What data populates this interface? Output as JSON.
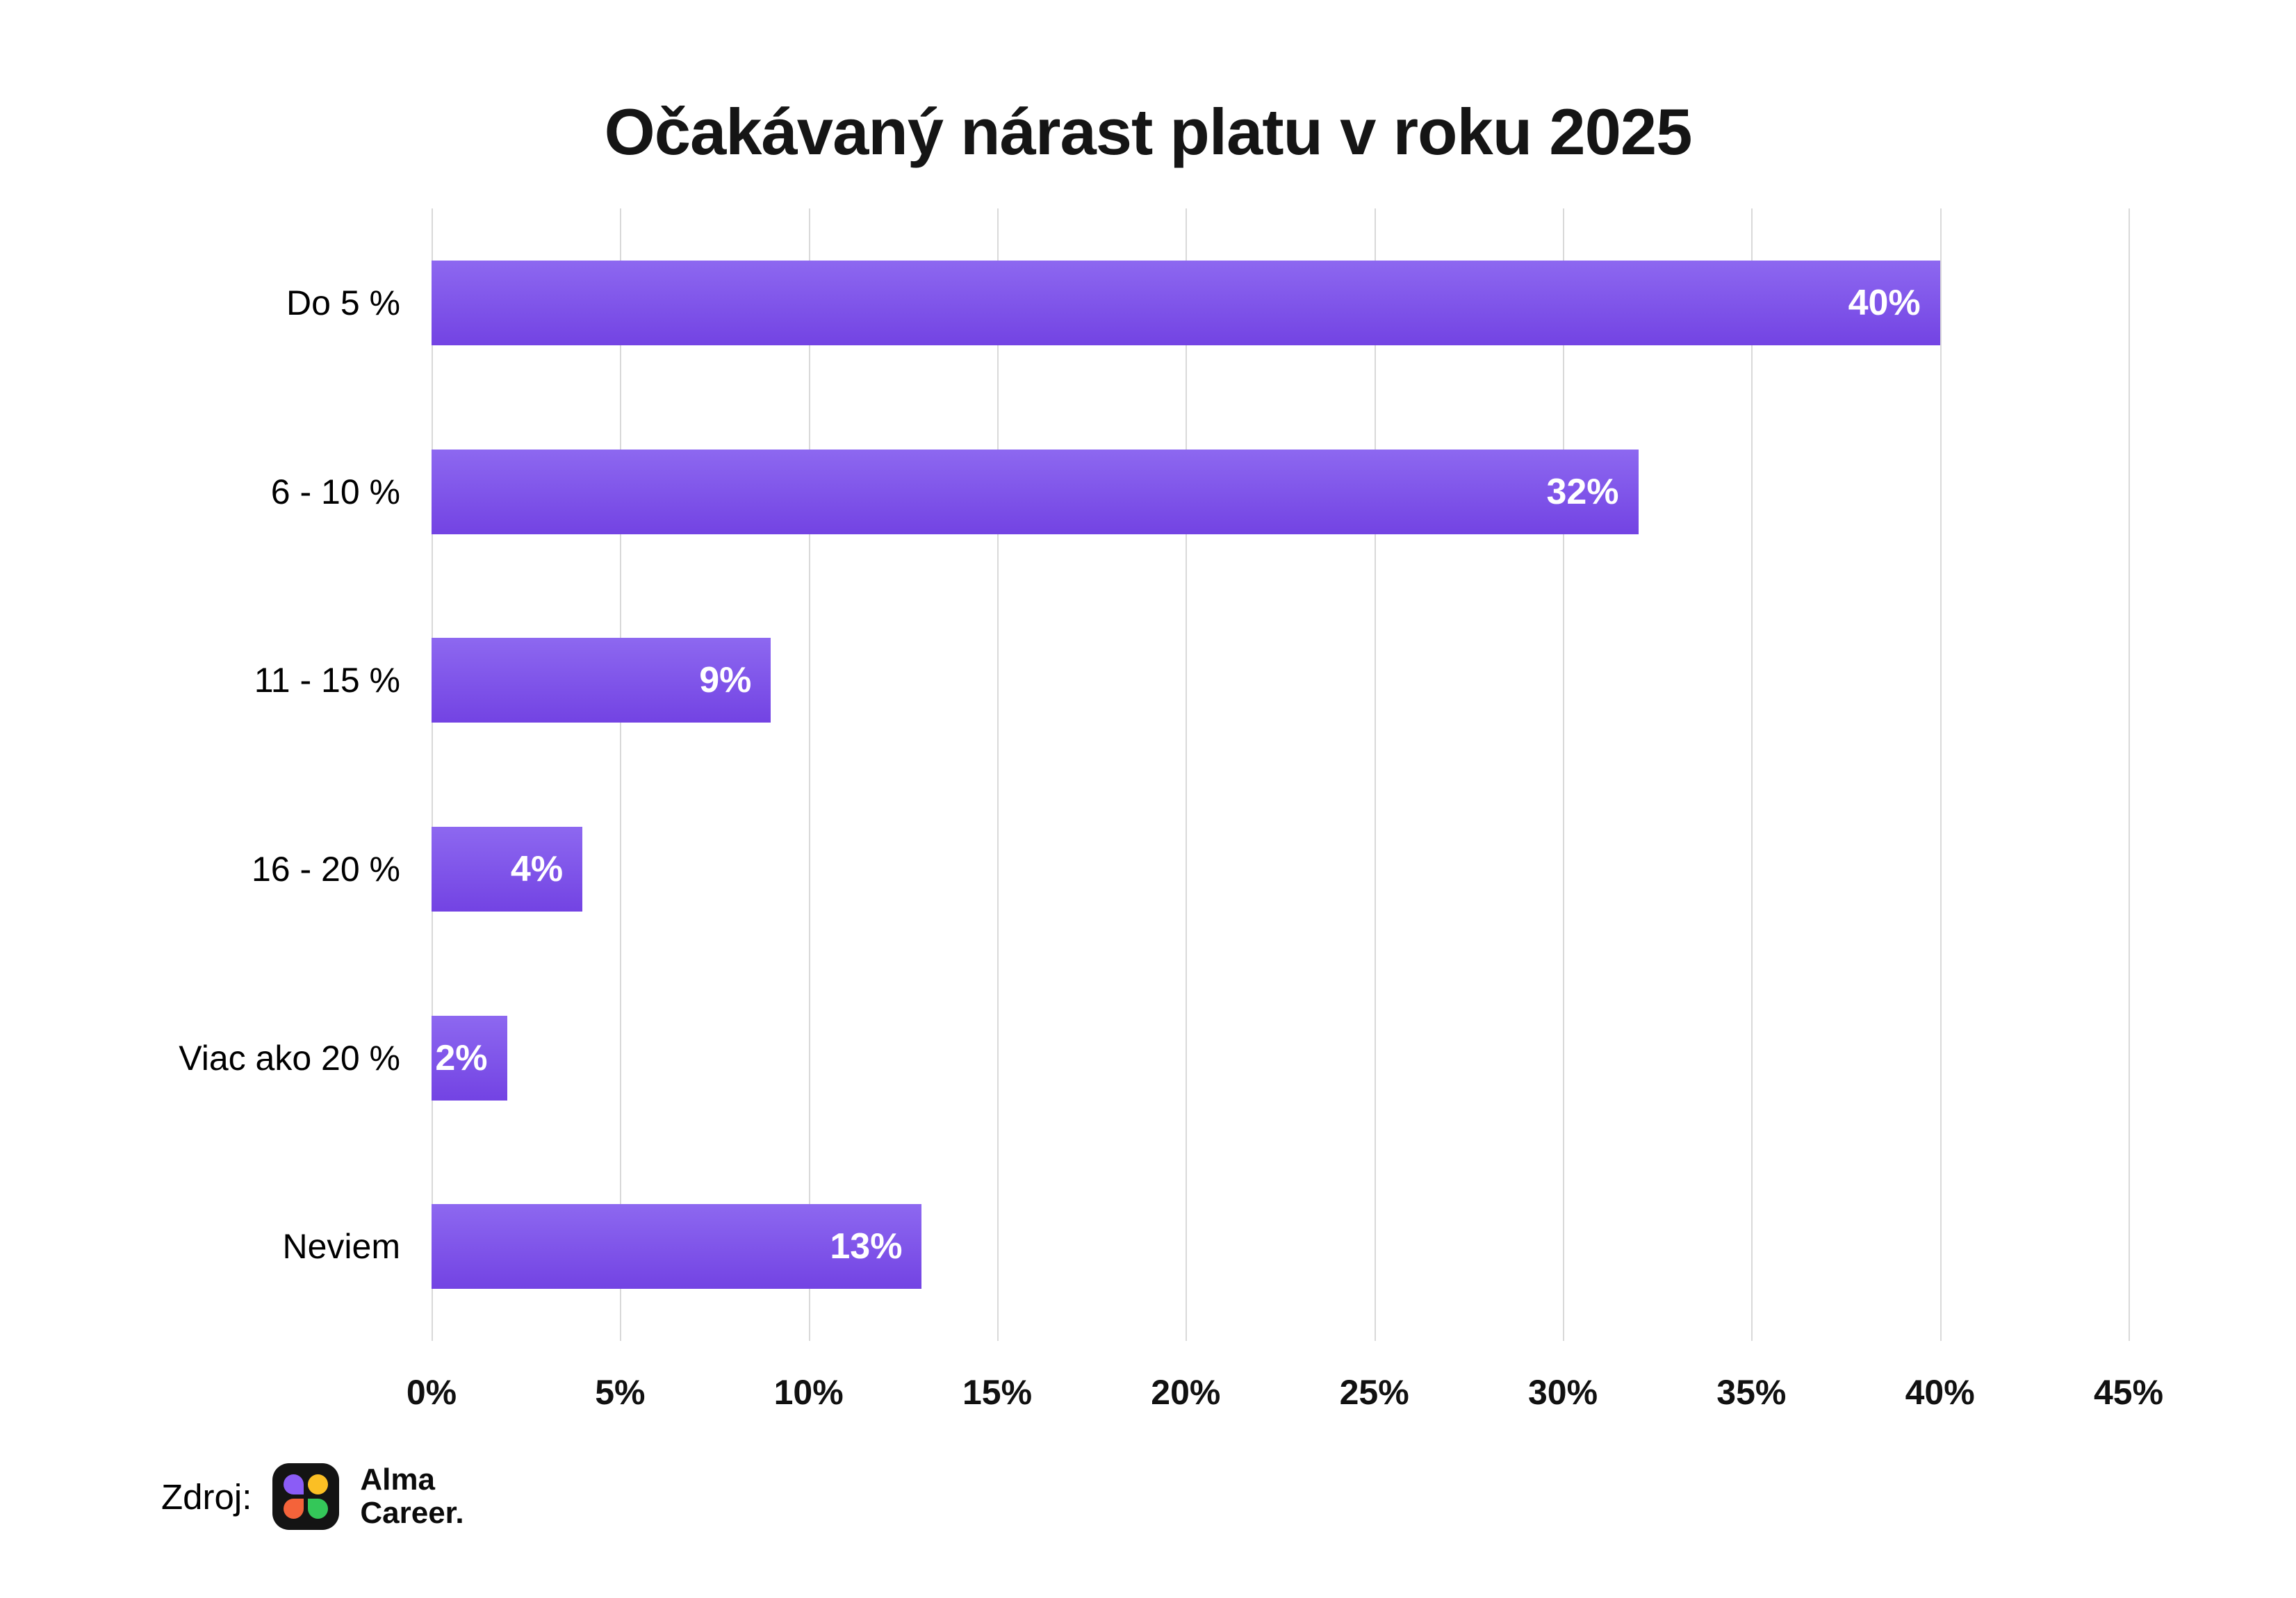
{
  "chart_data": {
    "type": "bar",
    "orientation": "horizontal",
    "title": "Očakávaný nárast platu v roku 2025",
    "categories": [
      "Do 5 %",
      "6 - 10 %",
      "11 - 15 %",
      "16 - 20 %",
      "Viac ako 20 %",
      "Neviem"
    ],
    "values": [
      40,
      32,
      9,
      4,
      2,
      13
    ],
    "value_labels": [
      "40%",
      "32%",
      "9%",
      "4%",
      "2%",
      "13%"
    ],
    "x_ticks": [
      "0%",
      "5%",
      "10%",
      "15%",
      "20%",
      "25%",
      "30%",
      "35%",
      "40%",
      "45%"
    ],
    "x_tick_values": [
      0,
      5,
      10,
      15,
      20,
      25,
      30,
      35,
      40,
      45
    ],
    "xlim": [
      0,
      45
    ],
    "xlabel": "",
    "ylabel": "",
    "grid": "vertical",
    "legend": "none",
    "bar_color_top": "#8d68f0",
    "bar_color_bottom": "#7343e3",
    "value_label_color": "#ffffff",
    "gridline_color": "#d9d9d9",
    "background_color": "#ffffff"
  },
  "footer": {
    "source_label": "Zdroj:",
    "brand_line1": "Alma",
    "brand_line2": "Career.",
    "logo_colors": {
      "tile": "#141414",
      "purple": "#8b5cf6",
      "yellow": "#fbbf24",
      "orange": "#f4633a",
      "green": "#34c759"
    }
  }
}
